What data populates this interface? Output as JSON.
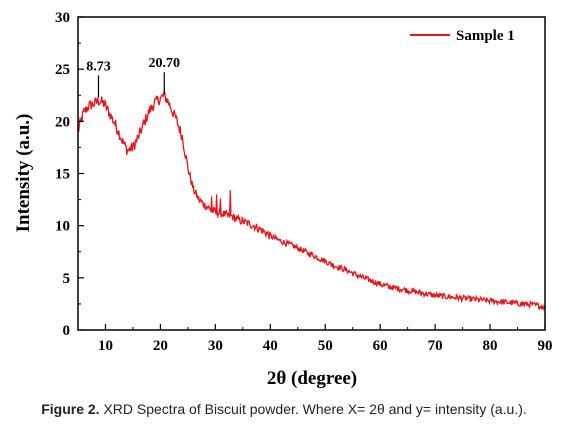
{
  "caption": {
    "label": "Figure 2.",
    "text": "XRD Spectra of Biscuit powder. Where X= 2θ and y= intensity (a.u.)."
  },
  "chart_data": {
    "type": "line",
    "xlabel": "2θ (degree)",
    "ylabel": "Intensity (a.u.)",
    "xlim": [
      5,
      90
    ],
    "ylim": [
      0,
      30
    ],
    "xticks": [
      10,
      20,
      30,
      40,
      50,
      60,
      70,
      80,
      90
    ],
    "yticks": [
      0,
      5,
      10,
      15,
      20,
      25,
      30
    ],
    "grid": false,
    "legend_position": "top-right",
    "series": [
      {
        "name": "Sample 1",
        "color": "#e8141a",
        "x": [
          5,
          6,
          7,
          8,
          8.73,
          9.5,
          10,
          11,
          12,
          13,
          14,
          15,
          16,
          17,
          18,
          19,
          20,
          20.7,
          21.5,
          22,
          23,
          24,
          25,
          26,
          27,
          28,
          29,
          30,
          31,
          32,
          33,
          34,
          35,
          36,
          37,
          38,
          39,
          40,
          42,
          44,
          46,
          48,
          50,
          52,
          54,
          56,
          58,
          60,
          62,
          64,
          66,
          68,
          70,
          72,
          74,
          76,
          78,
          80,
          82,
          84,
          86,
          88,
          90
        ],
        "y": [
          19,
          20.8,
          21.5,
          21.7,
          22,
          21.8,
          21.5,
          20.5,
          19.5,
          18.2,
          17.2,
          17.5,
          18.5,
          19.8,
          21,
          21.8,
          22.2,
          22.5,
          21.8,
          21.2,
          20,
          18.5,
          15.5,
          13.5,
          12.5,
          12,
          11.6,
          11.3,
          11.2,
          11,
          10.9,
          10.6,
          10.4,
          10.2,
          10,
          9.7,
          9.4,
          9,
          8.5,
          8.1,
          7.6,
          7.1,
          6.6,
          6.1,
          5.7,
          5.2,
          4.8,
          4.4,
          4.1,
          3.9,
          3.7,
          3.5,
          3.3,
          3.2,
          3.1,
          3,
          2.9,
          2.8,
          2.7,
          2.6,
          2.5,
          2.4,
          2.2
        ]
      }
    ],
    "annotations": [
      {
        "x": 8.73,
        "y": 22.3,
        "text": "8.73"
      },
      {
        "x": 20.7,
        "y": 22.6,
        "text": "20.70"
      }
    ]
  }
}
